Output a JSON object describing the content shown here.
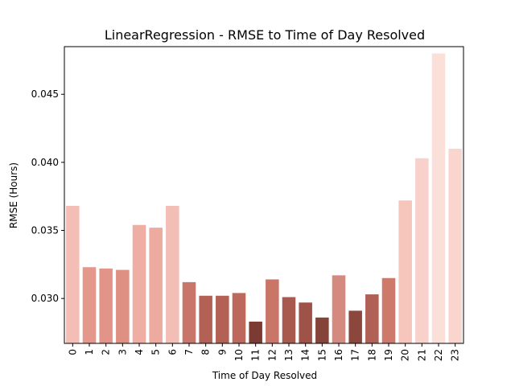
{
  "chart_data": {
    "type": "bar",
    "title": "LinearRegression - RMSE to Time of Day Resolved",
    "xlabel": "Time of Day Resolved",
    "ylabel": "RMSE (Hours)",
    "categories": [
      "0",
      "1",
      "2",
      "3",
      "4",
      "5",
      "6",
      "7",
      "8",
      "9",
      "10",
      "11",
      "12",
      "13",
      "14",
      "15",
      "16",
      "17",
      "18",
      "19",
      "20",
      "21",
      "22",
      "23"
    ],
    "values": [
      0.0368,
      0.0323,
      0.0322,
      0.0321,
      0.0354,
      0.0352,
      0.0368,
      0.0312,
      0.0302,
      0.0302,
      0.0304,
      0.0283,
      0.0314,
      0.0301,
      0.0297,
      0.0286,
      0.0317,
      0.0291,
      0.0303,
      0.0315,
      0.0372,
      0.0403,
      0.048,
      0.041
    ],
    "colors": [
      "#f3beb5",
      "#e4988c",
      "#e29488",
      "#e09083",
      "#eeaea3",
      "#edaba0",
      "#f3beb5",
      "#c8756a",
      "#b36055",
      "#b36055",
      "#bd685c",
      "#7b3a32",
      "#c97668",
      "#a95a4e",
      "#9e5248",
      "#86433a",
      "#d48a7e",
      "#8c473d",
      "#b06054",
      "#cd7a6d",
      "#f6c6bd",
      "#f8d2ca",
      "#fbe0da",
      "#f9d5ce"
    ],
    "ylim": [
      0.0267,
      0.0485
    ],
    "yticks": [
      0.03,
      0.035,
      0.04,
      0.045
    ],
    "ytick_labels": [
      "0.030",
      "0.035",
      "0.040",
      "0.045"
    ],
    "grid": false,
    "legend": "none"
  }
}
